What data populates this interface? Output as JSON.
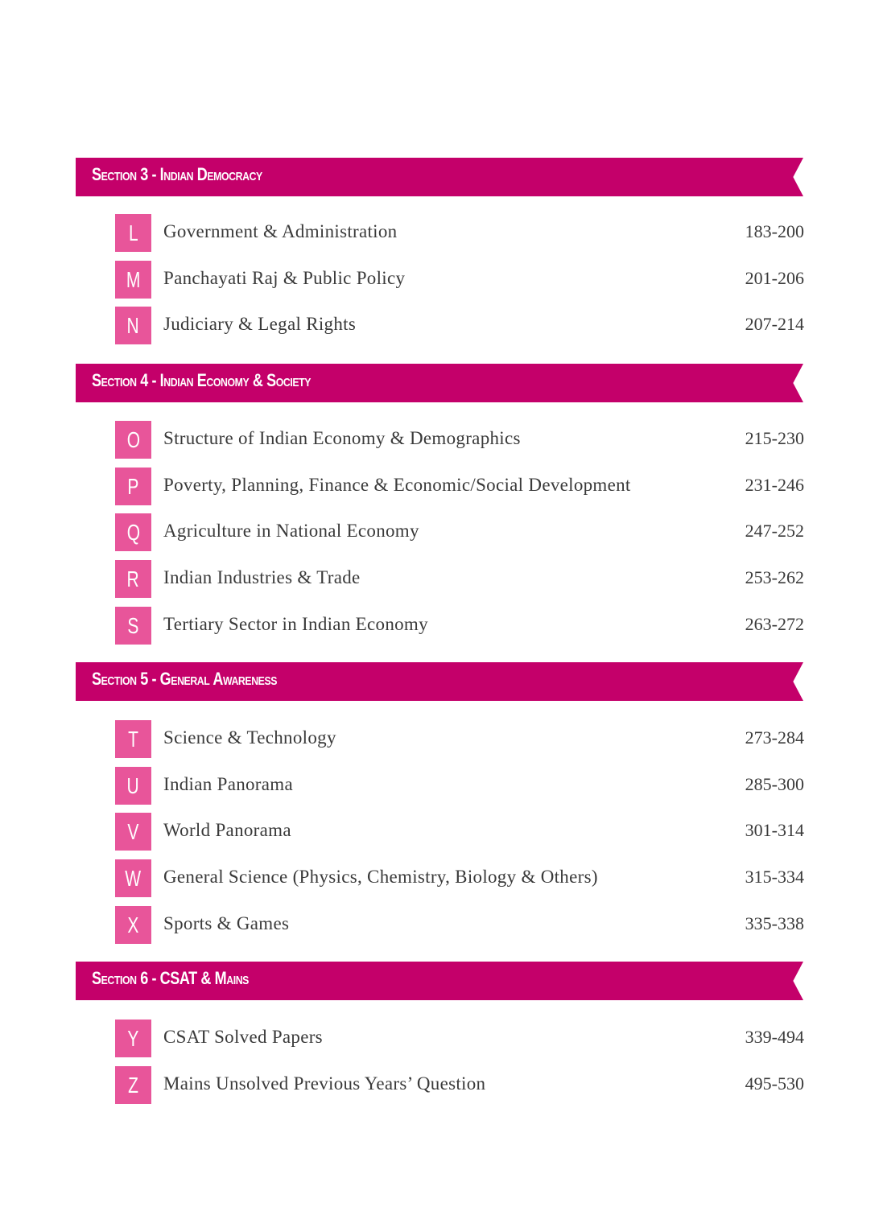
{
  "colors": {
    "section_bar": "#c4006a",
    "letter_badge": "#e8559a"
  },
  "sections": [
    {
      "title": "Section 3 - Indian Democracy",
      "chapters": [
        {
          "letter": "L",
          "title": "Government & Administration",
          "pages": "183-200"
        },
        {
          "letter": "M",
          "title": "Panchayati Raj & Public Policy",
          "pages": "201-206"
        },
        {
          "letter": "N",
          "title": "Judiciary & Legal Rights",
          "pages": "207-214"
        }
      ]
    },
    {
      "title": "Section 4 - Indian Economy & Society",
      "chapters": [
        {
          "letter": "O",
          "title": "Structure of Indian Economy & Demographics",
          "pages": "215-230"
        },
        {
          "letter": "P",
          "title": "Poverty, Planning, Finance & Economic/Social Development",
          "pages": "231-246"
        },
        {
          "letter": "Q",
          "title": "Agriculture in National Economy",
          "pages": "247-252"
        },
        {
          "letter": "R",
          "title": "Indian Industries & Trade",
          "pages": "253-262"
        },
        {
          "letter": "S",
          "title": "Tertiary Sector in Indian Economy",
          "pages": "263-272"
        }
      ]
    },
    {
      "title": "Section 5 - General Awareness",
      "chapters": [
        {
          "letter": "T",
          "title": "Science & Technology",
          "pages": "273-284"
        },
        {
          "letter": "U",
          "title": "Indian Panorama",
          "pages": "285-300"
        },
        {
          "letter": "V",
          "title": "World Panorama",
          "pages": "301-314"
        },
        {
          "letter": "W",
          "title": "General Science (Physics, Chemistry, Biology & Others)",
          "pages": "315-334"
        },
        {
          "letter": "X",
          "title": "Sports & Games",
          "pages": "335-338"
        }
      ]
    },
    {
      "title": "Section 6 - CSAT & Mains",
      "chapters": [
        {
          "letter": "Y",
          "title": "CSAT Solved Papers",
          "pages": "339-494"
        },
        {
          "letter": "Z",
          "title": "Mains Unsolved Previous Years’ Question",
          "pages": "495-530"
        }
      ]
    }
  ]
}
